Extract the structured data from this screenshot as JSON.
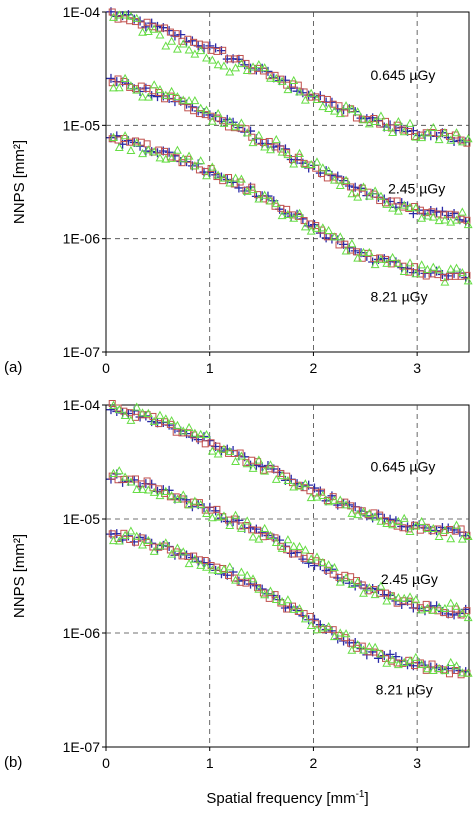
{
  "chart_data": [
    {
      "panel_label": "(a)",
      "type": "scatter",
      "ylabel": "NNPS [mm²]",
      "xlabel": "",
      "xlim": [
        0,
        3.5
      ],
      "ylim": [
        1e-07,
        0.0001
      ],
      "yscale": "log",
      "x_ticks": [
        "0",
        "1",
        "2",
        "3"
      ],
      "y_ticks": [
        "1E-07",
        "1E-06",
        "1E-05",
        "1E-04"
      ],
      "grid": "dashed",
      "marker_series": [
        {
          "marker": "plus",
          "color": "#2a2aa8"
        },
        {
          "marker": "square",
          "color": "#c0504d"
        },
        {
          "marker": "triangle",
          "color": "#66dd44"
        }
      ],
      "curves": [
        {
          "label": "0.645 µGy",
          "label_at": {
            "x": 2.55,
            "y": 2.5e-05
          },
          "points": [
            [
              0.05,
              9.8e-05
            ],
            [
              0.5,
              7.2e-05
            ],
            [
              1.0,
              4.8e-05
            ],
            [
              1.5,
              3e-05
            ],
            [
              2.0,
              1.8e-05
            ],
            [
              2.5,
              1.15e-05
            ],
            [
              3.0,
              8.5e-06
            ],
            [
              3.5,
              7.5e-06
            ]
          ]
        },
        {
          "label": "2.45 µGy",
          "label_at": {
            "x": 2.72,
            "y": 2.5e-06
          },
          "points": [
            [
              0.05,
              2.5e-05
            ],
            [
              0.5,
              1.9e-05
            ],
            [
              1.0,
              1.25e-05
            ],
            [
              1.5,
              7.5e-06
            ],
            [
              2.0,
              4.2e-06
            ],
            [
              2.5,
              2.5e-06
            ],
            [
              3.0,
              1.75e-06
            ],
            [
              3.5,
              1.5e-06
            ]
          ]
        },
        {
          "label": "8.21 µGy",
          "label_at": {
            "x": 2.55,
            "y": 2.8e-07
          },
          "points": [
            [
              0.05,
              7.8e-06
            ],
            [
              0.5,
              6e-06
            ],
            [
              1.0,
              4e-06
            ],
            [
              1.5,
              2.4e-06
            ],
            [
              2.0,
              1.25e-06
            ],
            [
              2.5,
              7e-07
            ],
            [
              3.0,
              5.2e-07
            ],
            [
              3.5,
              4.5e-07
            ]
          ]
        }
      ]
    },
    {
      "panel_label": "(b)",
      "type": "scatter",
      "ylabel": "NNPS [mm²]",
      "xlabel": "Spatial frequency [mm-1]",
      "xlim": [
        0,
        3.5
      ],
      "ylim": [
        1e-07,
        0.0001
      ],
      "yscale": "log",
      "x_ticks": [
        "0",
        "1",
        "2",
        "3"
      ],
      "y_ticks": [
        "1E-07",
        "1E-06",
        "1E-05",
        "1E-04"
      ],
      "grid": "dashed",
      "marker_series": [
        {
          "marker": "plus",
          "color": "#2a2aa8"
        },
        {
          "marker": "square",
          "color": "#c0504d"
        },
        {
          "marker": "triangle",
          "color": "#66dd44"
        }
      ],
      "curves": [
        {
          "label": "0.645 µGy",
          "label_at": {
            "x": 2.55,
            "y": 2.6e-05
          },
          "points": [
            [
              0.05,
              9.6e-05
            ],
            [
              0.5,
              7.2e-05
            ],
            [
              1.0,
              4.7e-05
            ],
            [
              1.5,
              2.9e-05
            ],
            [
              2.0,
              1.75e-05
            ],
            [
              2.5,
              1.1e-05
            ],
            [
              3.0,
              8.3e-06
            ],
            [
              3.5,
              7.5e-06
            ]
          ]
        },
        {
          "label": "2.45 µGy",
          "label_at": {
            "x": 2.65,
            "y": 2.7e-06
          },
          "points": [
            [
              0.05,
              2.4e-05
            ],
            [
              0.4,
              2e-05
            ],
            [
              1.0,
              1.2e-05
            ],
            [
              1.5,
              7.5e-06
            ],
            [
              2.0,
              4.2e-06
            ],
            [
              2.5,
              2.5e-06
            ],
            [
              3.0,
              1.7e-06
            ],
            [
              3.5,
              1.5e-06
            ]
          ]
        },
        {
          "label": "8.21 µGy",
          "label_at": {
            "x": 2.6,
            "y": 2.9e-07
          },
          "points": [
            [
              0.05,
              7.5e-06
            ],
            [
              0.5,
              5.8e-06
            ],
            [
              1.0,
              4e-06
            ],
            [
              1.5,
              2.4e-06
            ],
            [
              2.0,
              1.25e-06
            ],
            [
              2.5,
              7e-07
            ],
            [
              3.0,
              5.2e-07
            ],
            [
              3.5,
              4.5e-07
            ]
          ]
        }
      ]
    }
  ]
}
